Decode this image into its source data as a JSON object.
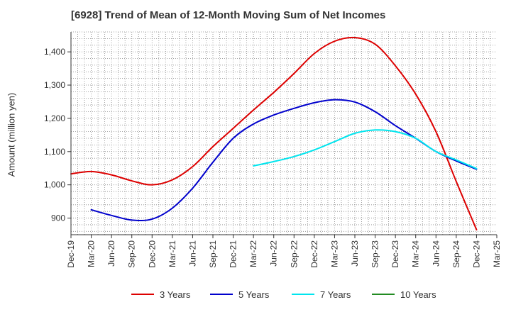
{
  "colors": {
    "grid": "#888888",
    "axis": "#333333"
  },
  "chart_data": {
    "type": "line",
    "title": "[6928]  Trend of Mean of 12-Month Moving Sum of Net Incomes",
    "xlabel": "",
    "ylabel": "Amount (million yen)",
    "ylim": [
      850,
      1460
    ],
    "yticks": [
      900,
      1000,
      1100,
      1200,
      1300,
      1400
    ],
    "ytick_labels": [
      "900",
      "1,000",
      "1,100",
      "1,200",
      "1,300",
      "1,400"
    ],
    "x_ticks": [
      "Dec-19",
      "Mar-20",
      "Jun-20",
      "Sep-20",
      "Dec-20",
      "Mar-21",
      "Jun-21",
      "Sep-21",
      "Dec-21",
      "Mar-22",
      "Jun-22",
      "Sep-22",
      "Dec-22",
      "Mar-23",
      "Jun-23",
      "Sep-23",
      "Dec-23",
      "Mar-24",
      "Jun-24",
      "Sep-24",
      "Dec-24",
      "Mar-25"
    ],
    "grid": true,
    "legend_position": "bottom",
    "series": [
      {
        "name": "3 Years",
        "color": "#dd0000",
        "x": [
          "Dec-19",
          "Mar-20",
          "Jun-20",
          "Sep-20",
          "Dec-20",
          "Mar-21",
          "Jun-21",
          "Sep-21",
          "Dec-21",
          "Mar-22",
          "Jun-22",
          "Sep-22",
          "Dec-22",
          "Mar-23",
          "Jun-23",
          "Sep-23",
          "Dec-23",
          "Mar-24",
          "Jun-24",
          "Sep-24",
          "Dec-24"
        ],
        "values": [
          1033,
          1040,
          1030,
          1012,
          1000,
          1015,
          1055,
          1115,
          1170,
          1225,
          1278,
          1335,
          1395,
          1432,
          1443,
          1423,
          1358,
          1273,
          1160,
          1010,
          865
        ]
      },
      {
        "name": "5 Years",
        "color": "#0000cc",
        "x": [
          "Mar-20",
          "Jun-20",
          "Sep-20",
          "Dec-20",
          "Mar-21",
          "Jun-21",
          "Sep-21",
          "Dec-21",
          "Mar-22",
          "Jun-22",
          "Sep-22",
          "Dec-22",
          "Mar-23",
          "Jun-23",
          "Sep-23",
          "Dec-23",
          "Mar-24",
          "Jun-24",
          "Sep-24",
          "Dec-24"
        ],
        "values": [
          925,
          908,
          894,
          897,
          930,
          990,
          1068,
          1140,
          1183,
          1210,
          1230,
          1247,
          1256,
          1249,
          1220,
          1178,
          1140,
          1100,
          1072,
          1047
        ]
      },
      {
        "name": "7 Years",
        "color": "#00e5ee",
        "x": [
          "Mar-22",
          "Jun-22",
          "Sep-22",
          "Dec-22",
          "Mar-23",
          "Jun-23",
          "Sep-23",
          "Dec-23",
          "Mar-24",
          "Jun-24",
          "Sep-24",
          "Dec-24"
        ],
        "values": [
          1057,
          1070,
          1085,
          1105,
          1130,
          1155,
          1165,
          1160,
          1140,
          1100,
          1075,
          1049
        ]
      },
      {
        "name": "10 Years",
        "color": "#228b22",
        "x": [],
        "values": []
      }
    ]
  }
}
